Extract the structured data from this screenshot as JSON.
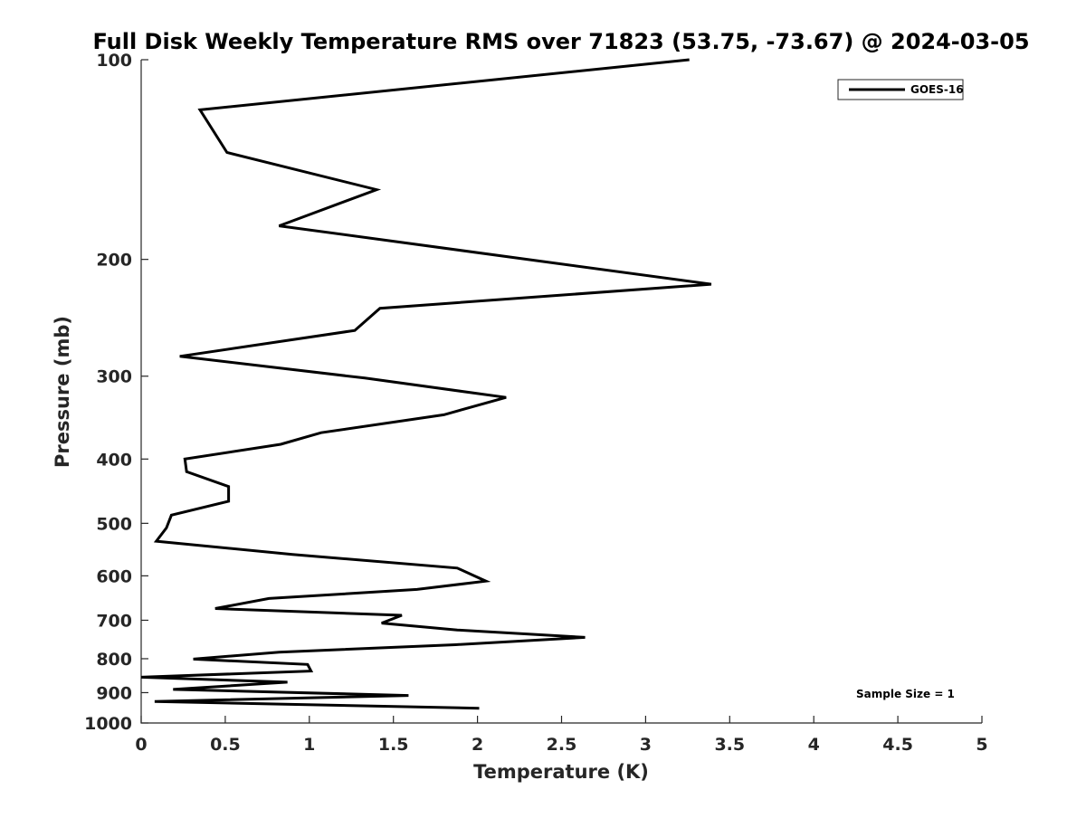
{
  "chart_data": {
    "type": "line",
    "title": "Full Disk Weekly Temperature RMS over 71823 (53.75, -73.67) @ 2024-03-05",
    "xlabel": "Temperature (K)",
    "ylabel": "Pressure (mb)",
    "xlim": [
      0,
      5
    ],
    "ylim": [
      1000,
      100
    ],
    "yscale": "log",
    "xticks": [
      "0",
      "0.5",
      "1",
      "1.5",
      "2",
      "2.5",
      "3",
      "3.5",
      "4",
      "4.5",
      "5"
    ],
    "yticks": [
      "100",
      "200",
      "300",
      "400",
      "500",
      "600",
      "700",
      "800",
      "900",
      "1000"
    ],
    "legend": {
      "position": "top-right",
      "entries": [
        "GOES-16"
      ]
    },
    "annotation": "Sample Size = 1",
    "series": [
      {
        "name": "GOES-16",
        "color": "#000000",
        "points": [
          [
            3.26,
            100
          ],
          [
            0.35,
            119
          ],
          [
            0.51,
            138
          ],
          [
            1.4,
            157
          ],
          [
            0.82,
            178
          ],
          [
            3.39,
            218
          ],
          [
            1.42,
            237
          ],
          [
            1.27,
            256
          ],
          [
            0.23,
            280
          ],
          [
            1.33,
            302
          ],
          [
            2.17,
            323
          ],
          [
            1.8,
            343
          ],
          [
            1.07,
            365
          ],
          [
            0.83,
            380
          ],
          [
            0.26,
            400
          ],
          [
            0.27,
            418
          ],
          [
            0.52,
            440
          ],
          [
            0.52,
            463
          ],
          [
            0.18,
            486
          ],
          [
            0.15,
            508
          ],
          [
            0.09,
            532
          ],
          [
            0.9,
            557
          ],
          [
            1.88,
            584
          ],
          [
            2.05,
            611
          ],
          [
            1.64,
            629
          ],
          [
            0.76,
            649
          ],
          [
            0.44,
            672
          ],
          [
            1.55,
            688
          ],
          [
            1.43,
            707
          ],
          [
            1.88,
            724
          ],
          [
            2.64,
            743
          ],
          [
            1.87,
            762
          ],
          [
            0.82,
            782
          ],
          [
            0.31,
            801
          ],
          [
            0.99,
            816
          ],
          [
            1.01,
            835
          ],
          [
            0.0,
            853
          ],
          [
            0.87,
            868
          ],
          [
            0.19,
            890
          ],
          [
            1.59,
            909
          ],
          [
            0.08,
            928
          ],
          [
            2.01,
            950
          ]
        ]
      }
    ]
  }
}
